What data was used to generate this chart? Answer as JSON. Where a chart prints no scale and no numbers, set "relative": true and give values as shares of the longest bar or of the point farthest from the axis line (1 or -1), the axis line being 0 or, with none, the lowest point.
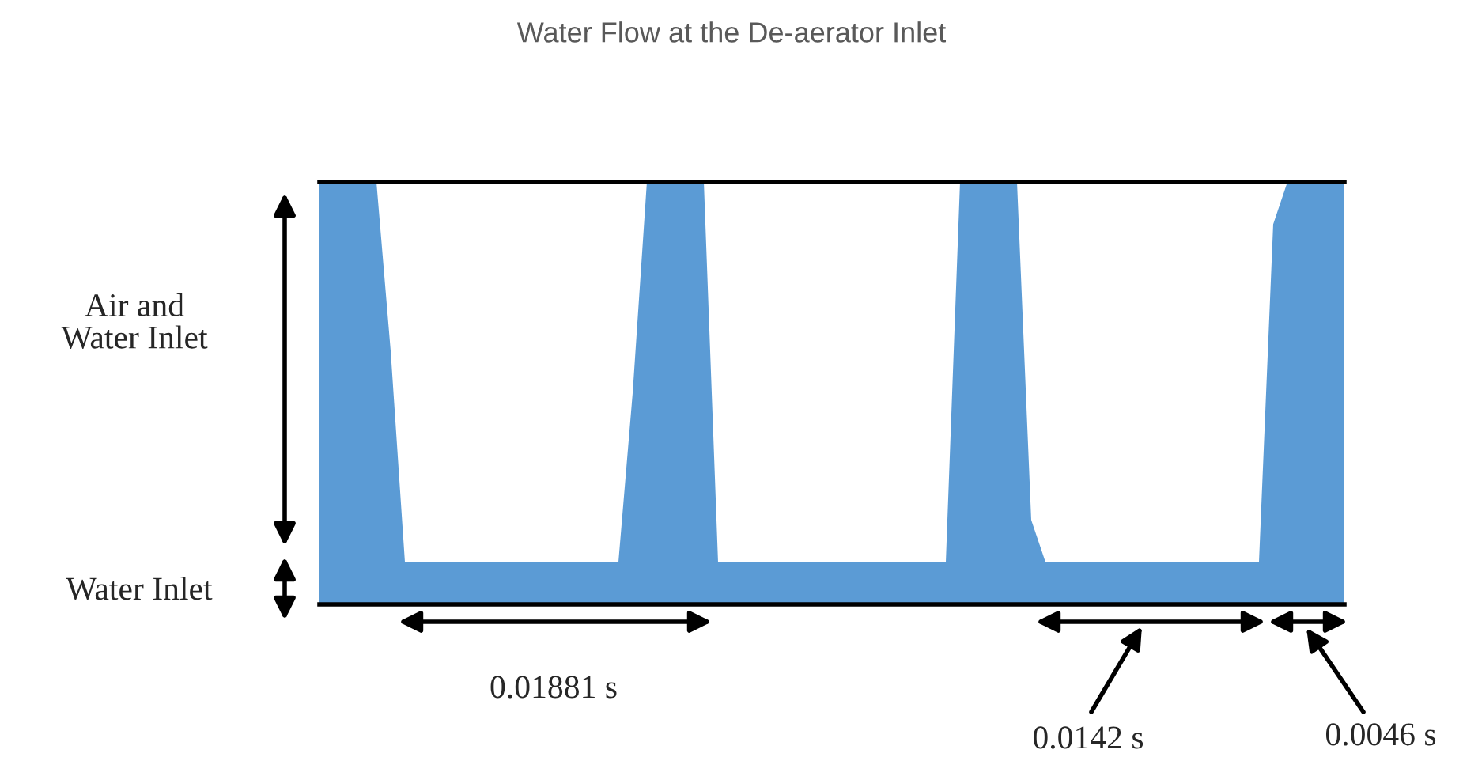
{
  "chart_data": {
    "type": "area",
    "title": "Water Flow at the De-aerator Inlet",
    "relative": true,
    "categories": [
      null,
      null,
      null,
      null,
      null,
      null,
      null,
      null,
      null,
      null,
      null,
      null,
      null,
      null,
      null,
      null,
      null,
      null,
      null,
      null,
      null,
      null,
      null,
      null,
      null,
      null,
      null,
      null,
      null,
      null,
      null,
      null,
      null,
      null,
      null,
      null,
      null,
      null,
      null,
      null,
      null,
      null,
      null,
      null,
      null,
      null,
      null,
      null,
      null,
      null,
      null,
      null,
      null,
      null,
      null,
      null,
      null,
      null,
      null,
      null,
      null,
      null,
      null,
      null,
      null,
      null,
      null,
      null,
      null,
      null,
      null,
      null,
      null
    ],
    "series": [
      {
        "color": "#5b9bd5",
        "values": [
          1,
          1,
          1,
          1,
          1,
          0.6,
          0.1,
          0.1,
          0.1,
          0.1,
          0.1,
          0.1,
          0.1,
          0.1,
          0.1,
          0.1,
          0.1,
          0.1,
          0.1,
          0.1,
          0.1,
          0.1,
          0.5,
          1,
          1,
          1,
          1,
          1,
          0.1,
          0.1,
          0.1,
          0.1,
          0.1,
          0.1,
          0.1,
          0.1,
          0.1,
          0.1,
          0.1,
          0.1,
          0.1,
          0.1,
          0.1,
          0.1,
          0.1,
          1,
          1,
          1,
          1,
          1,
          0.2,
          0.1,
          0.1,
          0.1,
          0.1,
          0.1,
          0.1,
          0.1,
          0.1,
          0.1,
          0.1,
          0.1,
          0.1,
          0.1,
          0.1,
          0.1,
          0.1,
          0.9,
          1,
          1,
          1,
          1,
          1
        ]
      }
    ],
    "annotations": [
      "Air and\nWater Inlet",
      "Water Inlet",
      "0.01881 s",
      "0.0142 s",
      "0.0046 s"
    ]
  }
}
